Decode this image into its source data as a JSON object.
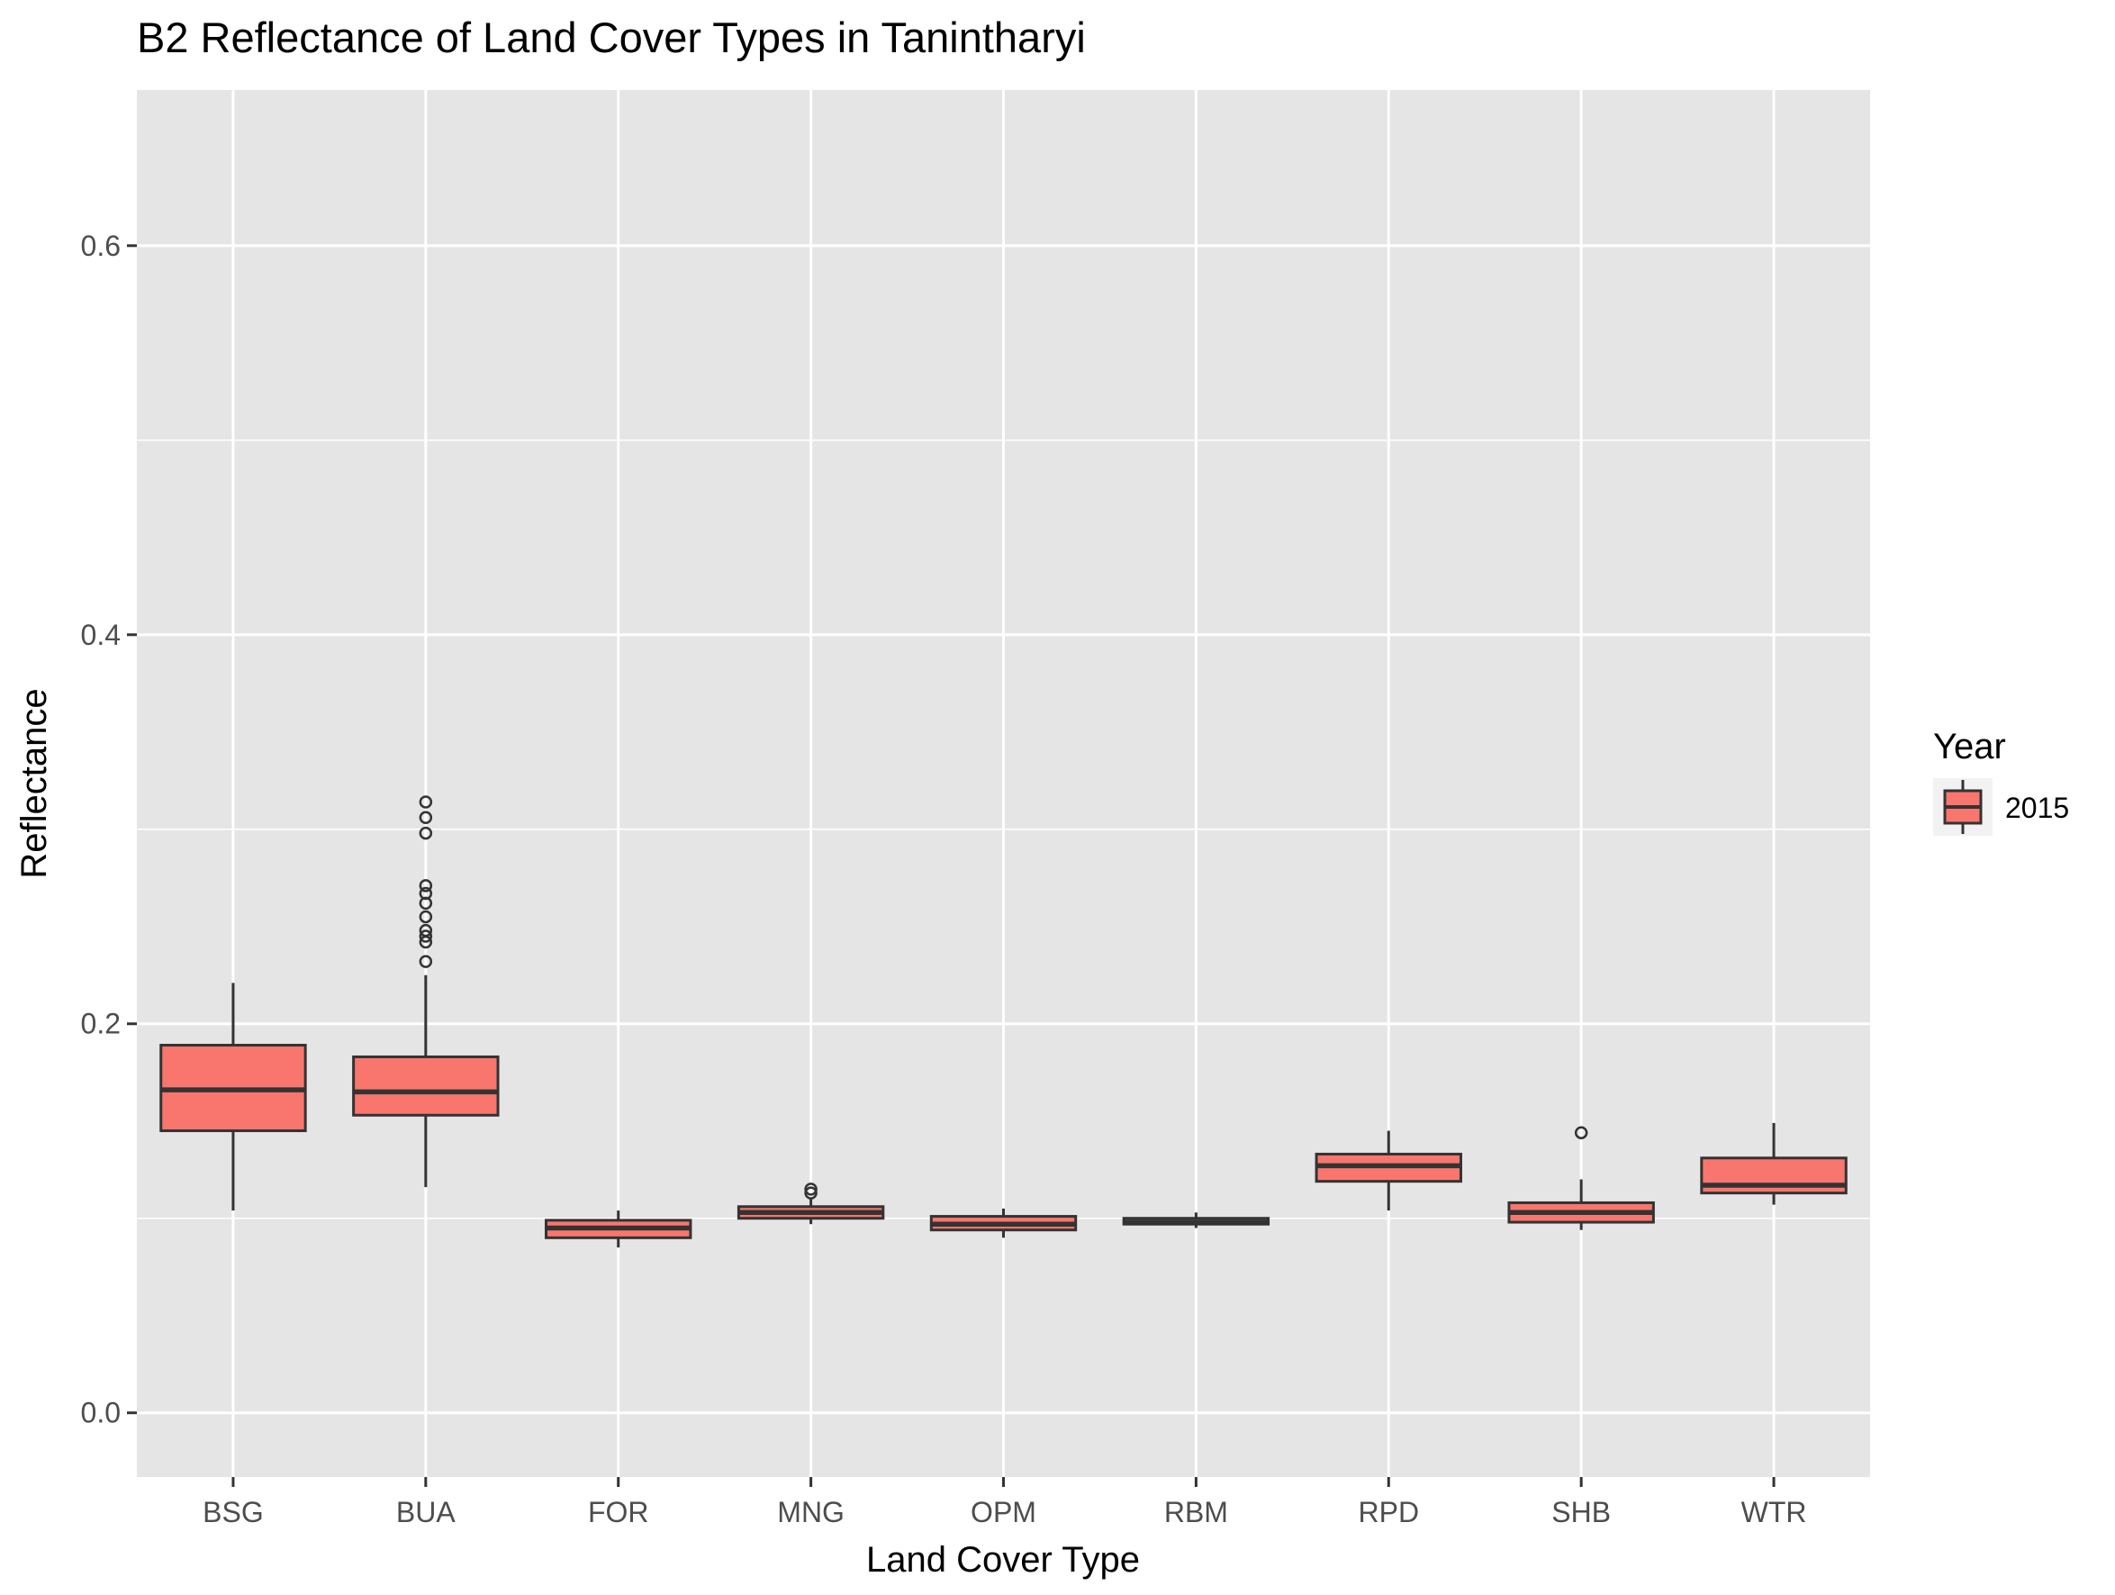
{
  "chart_data": {
    "type": "boxplot",
    "title": "B2 Reflectance of Land Cover Types in Tanintharyi",
    "xlabel": "Land Cover Type",
    "ylabel": "Reflectance",
    "ylim": [
      -0.033,
      0.68
    ],
    "yticks": [
      0.0,
      0.2,
      0.4,
      0.6
    ],
    "ytick_labels": [
      "0.0",
      "0.2",
      "0.4",
      "0.6"
    ],
    "grid": true,
    "legend": {
      "title": "Year",
      "placement": "right",
      "entries": [
        {
          "label": "2015",
          "color": "#F8766D"
        }
      ]
    },
    "colors": {
      "fill": "#F8766D",
      "outline": "#000000",
      "panel": "#E5E5E5",
      "grid": "#FFFFFF"
    },
    "categories": [
      "BSG",
      "BUA",
      "FOR",
      "MNG",
      "OPM",
      "RBM",
      "RPD",
      "SHB",
      "WTR"
    ],
    "series": [
      {
        "name": "2015",
        "boxes": [
          {
            "category": "BSG",
            "whisker_low": 0.104,
            "q1": 0.145,
            "median": 0.166,
            "q3": 0.189,
            "whisker_high": 0.221,
            "outliers": []
          },
          {
            "category": "BUA",
            "whisker_low": 0.116,
            "q1": 0.153,
            "median": 0.165,
            "q3": 0.183,
            "whisker_high": 0.225,
            "outliers": [
              0.232,
              0.242,
              0.245,
              0.248,
              0.255,
              0.262,
              0.267,
              0.271,
              0.298,
              0.306,
              0.314
            ]
          },
          {
            "category": "FOR",
            "whisker_low": 0.085,
            "q1": 0.09,
            "median": 0.095,
            "q3": 0.099,
            "whisker_high": 0.104,
            "outliers": []
          },
          {
            "category": "MNG",
            "whisker_low": 0.097,
            "q1": 0.1,
            "median": 0.103,
            "q3": 0.106,
            "whisker_high": 0.11,
            "outliers": [
              0.113,
              0.115
            ]
          },
          {
            "category": "OPM",
            "whisker_low": 0.09,
            "q1": 0.094,
            "median": 0.097,
            "q3": 0.101,
            "whisker_high": 0.105,
            "outliers": []
          },
          {
            "category": "RBM",
            "whisker_low": 0.095,
            "q1": 0.097,
            "median": 0.098,
            "q3": 0.1,
            "whisker_high": 0.103,
            "outliers": []
          },
          {
            "category": "RPD",
            "whisker_low": 0.104,
            "q1": 0.119,
            "median": 0.127,
            "q3": 0.133,
            "whisker_high": 0.145,
            "outliers": []
          },
          {
            "category": "SHB",
            "whisker_low": 0.094,
            "q1": 0.098,
            "median": 0.103,
            "q3": 0.108,
            "whisker_high": 0.12,
            "outliers": [
              0.144
            ]
          },
          {
            "category": "WTR",
            "whisker_low": 0.107,
            "q1": 0.113,
            "median": 0.117,
            "q3": 0.131,
            "whisker_high": 0.149,
            "outliers": []
          }
        ]
      }
    ]
  }
}
